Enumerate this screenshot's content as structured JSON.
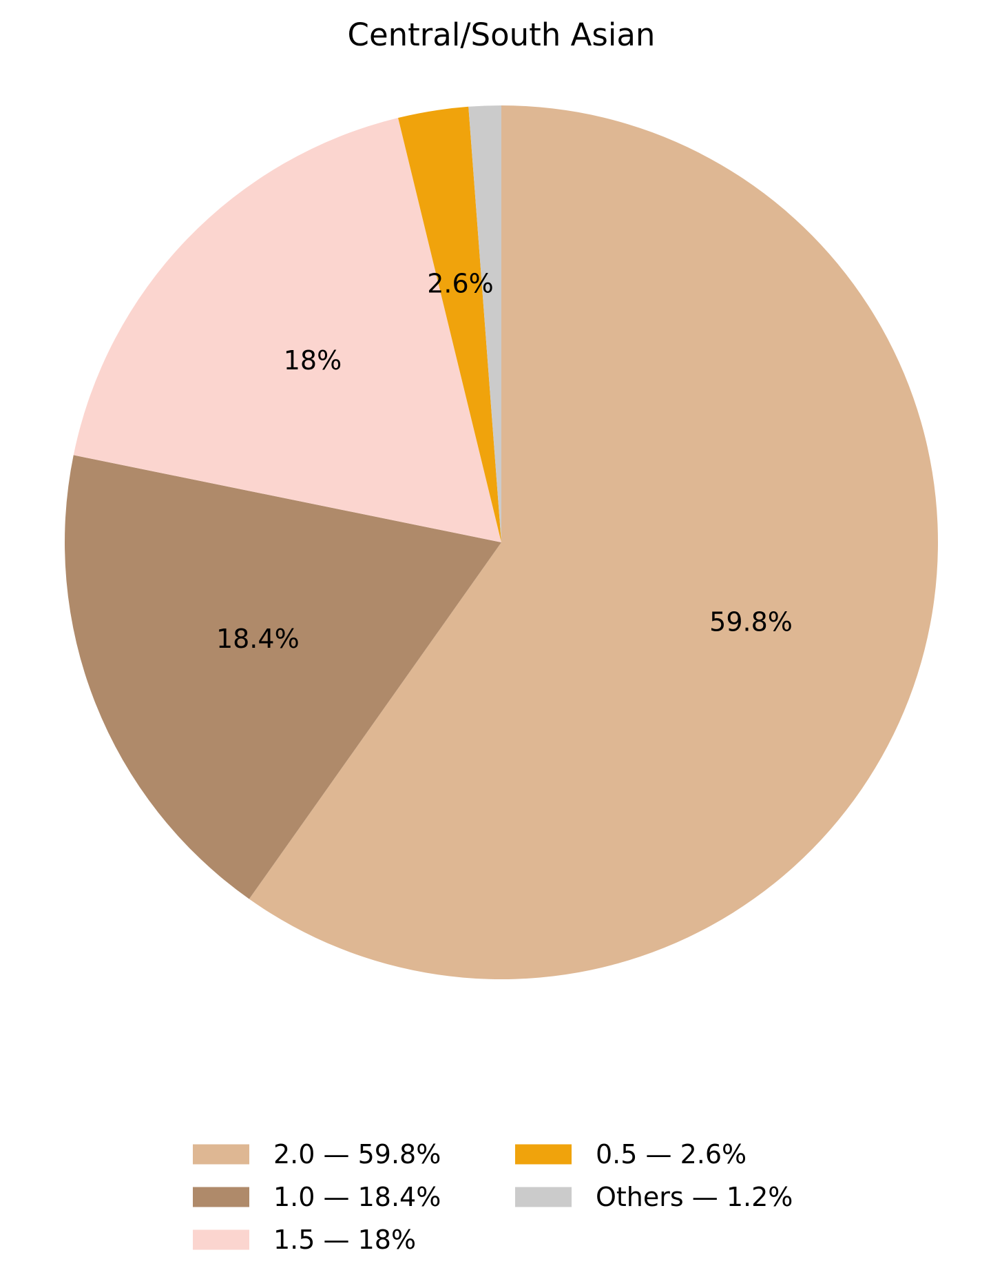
{
  "chart_data": {
    "type": "pie",
    "title": "Central/South Asian",
    "start": "top",
    "direction": "clockwise",
    "legend_position": "bottom",
    "legend_columns": 2,
    "slices": [
      {
        "label": "2.0",
        "value": 59.8,
        "display": "59.8%",
        "legend": "2.0 — 59.8%",
        "color": "#DEB793"
      },
      {
        "label": "1.0",
        "value": 18.4,
        "display": "18.4%",
        "legend": "1.0 — 18.4%",
        "color": "#AF8A6A"
      },
      {
        "label": "1.5",
        "value": 18.0,
        "display": "18%",
        "legend": "1.5 — 18%",
        "color": "#FBD5CF"
      },
      {
        "label": "0.5",
        "value": 2.6,
        "display": "2.6%",
        "legend": "0.5 — 2.6%",
        "color": "#F0A30C"
      },
      {
        "label": "Others",
        "value": 1.2,
        "display": "",
        "legend": "Others — 1.2%",
        "color": "#CBCBCB"
      }
    ]
  }
}
